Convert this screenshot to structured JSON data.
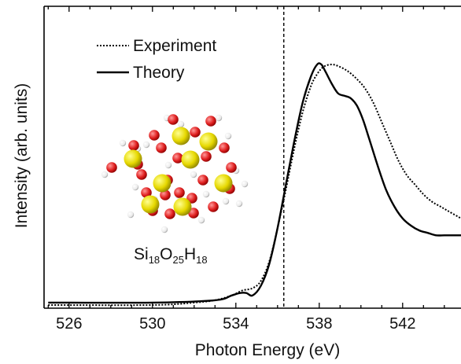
{
  "chart_data": {
    "type": "line",
    "xlabel": "Photon Energy (eV)",
    "ylabel": "Intensity (arb. units)",
    "xlim": [
      524.8,
      544.8
    ],
    "ylim": [
      0,
      1.05
    ],
    "xticks": [
      526,
      530,
      534,
      538,
      542
    ],
    "xtick_labels": [
      "526",
      "530",
      "534",
      "538",
      "542"
    ],
    "y_tick_labels": false,
    "grid": false,
    "legend": {
      "placement": "top-left"
    },
    "vertical_marker": {
      "x": 536.3,
      "style": "dashed"
    },
    "series": [
      {
        "name": "Experiment",
        "style": "dotted",
        "color": "#000000",
        "x": [
          525,
          530,
          532,
          533,
          533.8,
          534.3,
          534.8,
          535.2,
          535.6,
          536,
          536.4,
          536.8,
          537.2,
          537.6,
          537.9,
          538.2,
          538.6,
          539,
          539.4,
          539.8,
          540.2,
          540.6,
          541,
          541.4,
          541.8,
          542.2,
          542.6,
          543,
          543.4,
          543.8,
          544.2,
          544.8
        ],
        "values": [
          0.0,
          0.0,
          0.01,
          0.02,
          0.04,
          0.06,
          0.07,
          0.1,
          0.18,
          0.32,
          0.48,
          0.65,
          0.8,
          0.91,
          0.96,
          0.99,
          1.0,
          0.99,
          0.97,
          0.94,
          0.9,
          0.84,
          0.76,
          0.68,
          0.6,
          0.54,
          0.5,
          0.46,
          0.43,
          0.41,
          0.39,
          0.36
        ]
      },
      {
        "name": "Theory",
        "style": "solid",
        "color": "#000000",
        "x": [
          525,
          530,
          533,
          533.8,
          534.2,
          534.5,
          534.8,
          535.2,
          535.6,
          536,
          536.4,
          536.8,
          537.2,
          537.6,
          537.9,
          538.1,
          538.3,
          538.6,
          538.9,
          539.2,
          539.5,
          539.8,
          540.1,
          540.4,
          540.8,
          541.2,
          541.6,
          542,
          542.4,
          542.8,
          543.2,
          543.6,
          544,
          544.4,
          544.8
        ],
        "values": [
          0.01,
          0.01,
          0.02,
          0.04,
          0.05,
          0.05,
          0.04,
          0.08,
          0.17,
          0.32,
          0.5,
          0.68,
          0.84,
          0.95,
          1.0,
          1.0,
          0.97,
          0.92,
          0.88,
          0.87,
          0.86,
          0.83,
          0.77,
          0.69,
          0.58,
          0.48,
          0.41,
          0.36,
          0.33,
          0.31,
          0.3,
          0.29,
          0.29,
          0.29,
          0.29
        ]
      }
    ],
    "inset": {
      "label_parts": [
        {
          "text": "Si",
          "sub": false
        },
        {
          "text": "18",
          "sub": true
        },
        {
          "text": "O",
          "sub": false
        },
        {
          "text": "25",
          "sub": true
        },
        {
          "text": "H",
          "sub": false
        },
        {
          "text": "18",
          "sub": true
        }
      ],
      "colors": {
        "si": "#e8e000",
        "o": "#e02020",
        "h": "#f2f2f2"
      }
    }
  }
}
